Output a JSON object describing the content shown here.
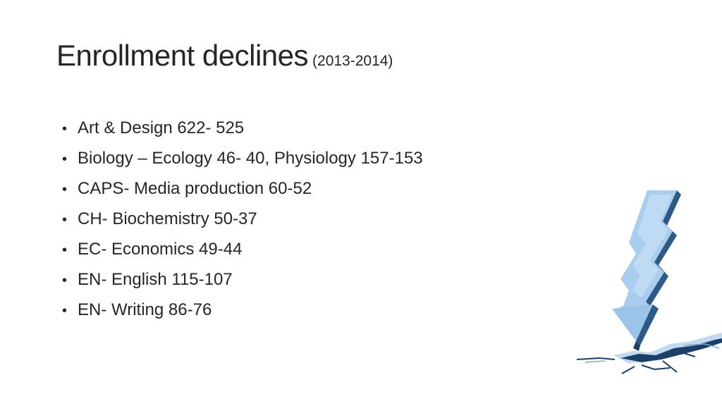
{
  "slide": {
    "title": "Enrollment declines",
    "subtitle": "(2013-2014)",
    "bullet_glyph": "•",
    "items": [
      {
        "text": "Art & Design 622- 525"
      },
      {
        "text": "Biology – Ecology 46- 40, Physiology 157-153"
      },
      {
        "text": "CAPS- Media production 60-52"
      },
      {
        "text": "CH- Biochemistry 50-37"
      },
      {
        "text": "EC- Economics 49-44"
      },
      {
        "text": "EN- English 115-107"
      },
      {
        "text": "EN- Writing 86-76"
      }
    ]
  },
  "art": {
    "name": "falling-zigzag-arrow-icon",
    "colors": {
      "arrow_face": "#a9cdef",
      "arrow_side": "#2f5a86",
      "crack_shadow": "#1b3f66",
      "crack_light": "#b7d3ee"
    }
  }
}
